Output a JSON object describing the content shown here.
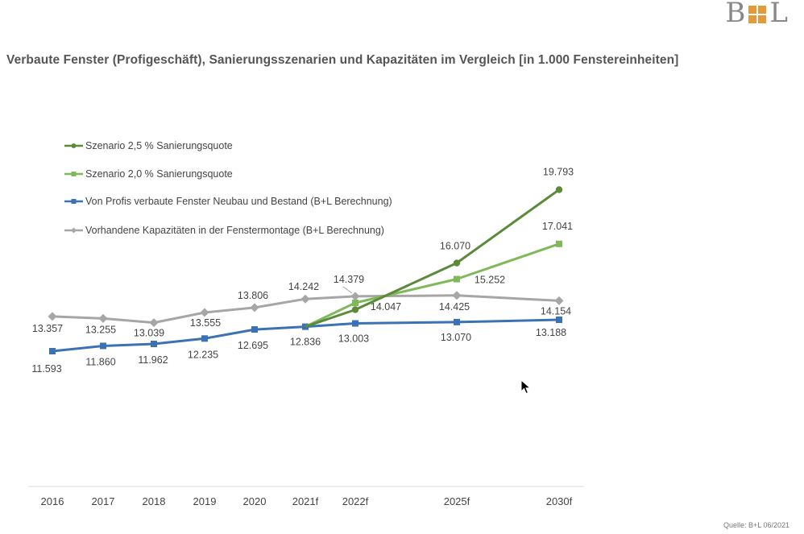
{
  "logo": {
    "left": "B",
    "right": "L"
  },
  "title": "Verbaute Fenster (Profigeschäft), Sanierungsszenarien und Kapazitäten im Vergleich [in 1.000 Fenstereinheiten]",
  "source": "Quelle: B+L 06/2021",
  "colors": {
    "dark_green": "#5a8a3a",
    "light_green": "#7fb95a",
    "blue": "#3a72b5",
    "gray": "#a6a6a6"
  },
  "chart_data": {
    "type": "line",
    "title": "Verbaute Fenster (Profigeschäft), Sanierungsszenarien und Kapazitäten im Vergleich [in 1.000 Fenstereinheiten]",
    "categories": [
      "2016",
      "2017",
      "2018",
      "2019",
      "2020",
      "2021f",
      "2022f",
      "2025f",
      "2030f"
    ],
    "ylim": [
      0,
      20500
    ],
    "grid": false,
    "legend_position": "top-left",
    "series": [
      {
        "name": "Szenario 2,5 % Sanierungsquote",
        "marker": "circle",
        "color": "#5a8a3a",
        "values": [
          null,
          null,
          null,
          null,
          null,
          12836,
          13700,
          16070,
          19793
        ],
        "labels": [
          null,
          null,
          null,
          null,
          null,
          null,
          null,
          "16.070",
          "19.793"
        ]
      },
      {
        "name": "Szenario 2,0 % Sanierungsquote",
        "marker": "square",
        "color": "#7fb95a",
        "values": [
          null,
          null,
          null,
          null,
          null,
          12836,
          14047,
          15252,
          17041
        ],
        "labels": [
          null,
          null,
          null,
          null,
          null,
          null,
          "14.047",
          "15.252",
          "17.041"
        ]
      },
      {
        "name": "Von Profis verbaute Fenster Neubau und Bestand (B+L Berechnung)",
        "marker": "square",
        "color": "#3a72b5",
        "values": [
          11593,
          11860,
          11962,
          12235,
          12695,
          12836,
          13003,
          13070,
          13188
        ],
        "labels": [
          "11.593",
          "11.860",
          "11.962",
          "12.235",
          "12.695",
          "12.836",
          "13.003",
          "13.070",
          "13.188"
        ]
      },
      {
        "name": "Vorhandene Kapazitäten in der Fenstermontage (B+L Berechnung)",
        "marker": "diamond",
        "color": "#a6a6a6",
        "values": [
          13357,
          13255,
          13039,
          13555,
          13806,
          14242,
          14379,
          14425,
          14154
        ],
        "labels": [
          "13.357",
          "13.255",
          "13.039",
          "13.555",
          "13.806",
          "14.242",
          "14.379",
          "14.425",
          "14.154"
        ]
      }
    ]
  }
}
